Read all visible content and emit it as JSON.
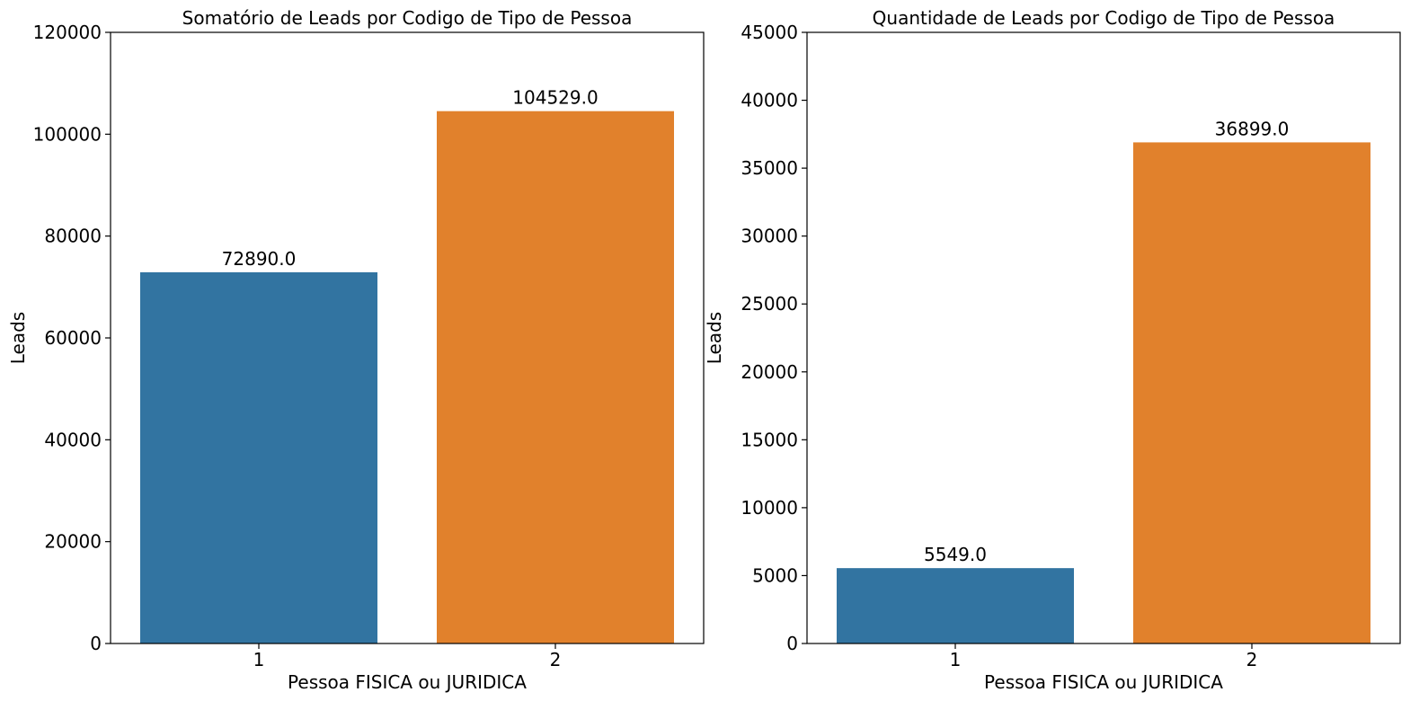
{
  "chart_data": [
    {
      "type": "bar",
      "title": "Somatório de Leads por Codigo de Tipo de Pessoa",
      "xlabel": "Pessoa FISICA ou JURIDICA",
      "ylabel": "Leads",
      "categories": [
        "1",
        "2"
      ],
      "values": [
        72890.0,
        104529.0
      ],
      "bar_labels": [
        "72890.0",
        "104529.0"
      ],
      "colors": [
        "#3274a1",
        "#e1812c"
      ],
      "ylim": [
        0,
        120000
      ],
      "yticks": [
        0,
        20000,
        40000,
        60000,
        80000,
        100000,
        120000
      ],
      "ytick_labels": [
        "0",
        "20000",
        "40000",
        "60000",
        "80000",
        "100000",
        "120000"
      ],
      "grid": false,
      "legend": "none"
    },
    {
      "type": "bar",
      "title": "Quantidade de Leads por Codigo de Tipo de Pessoa",
      "xlabel": "Pessoa FISICA ou JURIDICA",
      "ylabel": "Leads",
      "categories": [
        "1",
        "2"
      ],
      "values": [
        5549.0,
        36899.0
      ],
      "bar_labels": [
        "5549.0",
        "36899.0"
      ],
      "colors": [
        "#3274a1",
        "#e1812c"
      ],
      "ylim": [
        0,
        45000
      ],
      "yticks": [
        0,
        5000,
        10000,
        15000,
        20000,
        25000,
        30000,
        35000,
        40000,
        45000
      ],
      "ytick_labels": [
        "0",
        "5000",
        "10000",
        "15000",
        "20000",
        "25000",
        "30000",
        "35000",
        "40000",
        "45000"
      ],
      "grid": false,
      "legend": "none"
    }
  ]
}
